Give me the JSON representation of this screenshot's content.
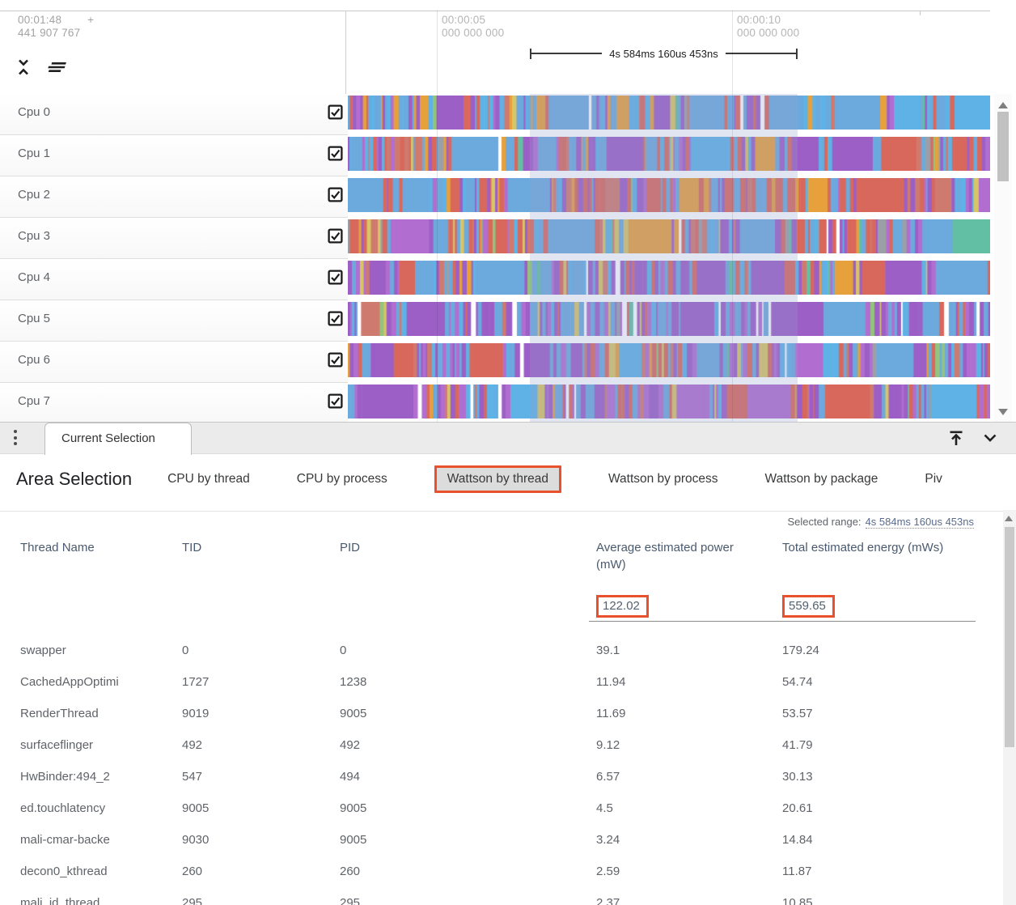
{
  "timeline": {
    "origin_time": "00:01:48",
    "origin_plus": "+",
    "origin_frac": "441 907 767",
    "ticks": [
      {
        "time": "00:00:05",
        "frac": "000 000 000"
      },
      {
        "time": "00:00:10",
        "frac": "000 000 000"
      }
    ],
    "span_label": "4s 584ms 160us 453ns"
  },
  "tracks": [
    {
      "label": "Cpu 0",
      "checked": true
    },
    {
      "label": "Cpu 1",
      "checked": true
    },
    {
      "label": "Cpu 2",
      "checked": true
    },
    {
      "label": "Cpu 3",
      "checked": true
    },
    {
      "label": "Cpu 4",
      "checked": true
    },
    {
      "label": "Cpu 5",
      "checked": true
    },
    {
      "label": "Cpu 6",
      "checked": true
    },
    {
      "label": "Cpu 7",
      "checked": true
    }
  ],
  "bottom_panel": {
    "tab": "Current Selection",
    "title": "Area Selection",
    "view_tabs": [
      {
        "label": "CPU by thread",
        "selected": false
      },
      {
        "label": "CPU by process",
        "selected": false
      },
      {
        "label": "Wattson by thread",
        "selected": true
      },
      {
        "label": "Wattson by process",
        "selected": false
      },
      {
        "label": "Wattson by package",
        "selected": false
      },
      {
        "label": "Piv",
        "selected": false
      }
    ],
    "selected_range_label": "Selected range:",
    "selected_range_value": "4s 584ms 160us 453ns"
  },
  "table": {
    "columns": [
      "Thread Name",
      "TID",
      "PID",
      "Average estimated power (mW)",
      "Total estimated energy (mWs)"
    ],
    "summary": {
      "avg_power": "122.02",
      "total_energy": "559.65"
    },
    "rows": [
      {
        "name": "swapper",
        "tid": "0",
        "pid": "0",
        "power": "39.1",
        "energy": "179.24"
      },
      {
        "name": "CachedAppOptimi",
        "tid": "1727",
        "pid": "1238",
        "power": "11.94",
        "energy": "54.74"
      },
      {
        "name": "RenderThread",
        "tid": "9019",
        "pid": "9005",
        "power": "11.69",
        "energy": "53.57"
      },
      {
        "name": "surfaceflinger",
        "tid": "492",
        "pid": "492",
        "power": "9.12",
        "energy": "41.79"
      },
      {
        "name": "HwBinder:494_2",
        "tid": "547",
        "pid": "494",
        "power": "6.57",
        "energy": "30.13"
      },
      {
        "name": "ed.touchlatency",
        "tid": "9005",
        "pid": "9005",
        "power": "4.5",
        "energy": "20.61"
      },
      {
        "name": "mali-cmar-backe",
        "tid": "9030",
        "pid": "9005",
        "power": "3.24",
        "energy": "14.84"
      },
      {
        "name": "decon0_kthread",
        "tid": "260",
        "pid": "260",
        "power": "2.59",
        "energy": "11.87"
      },
      {
        "name": "mali_jd_thread",
        "tid": "295",
        "pid": "295",
        "power": "2.37",
        "energy": "10.85"
      }
    ]
  },
  "colors": {
    "annotation_box": "#e8512b",
    "selection_overlay": "rgba(148,158,204,0.28)",
    "link_text": "#5b6c8d",
    "stripe_palette": {
      "blue": "#6ca9dd",
      "lightblue": "#5fb2e6",
      "purple": "#9c5fc6",
      "violet": "#b16ed0",
      "red": "#d9685c",
      "salmon": "#cf7a6e",
      "orange": "#e6a03c",
      "yellow": "#d8c565",
      "teal": "#63bfa3",
      "green": "#93c47d",
      "gray": "#9aa0a6",
      "white": "#ffffff"
    }
  }
}
